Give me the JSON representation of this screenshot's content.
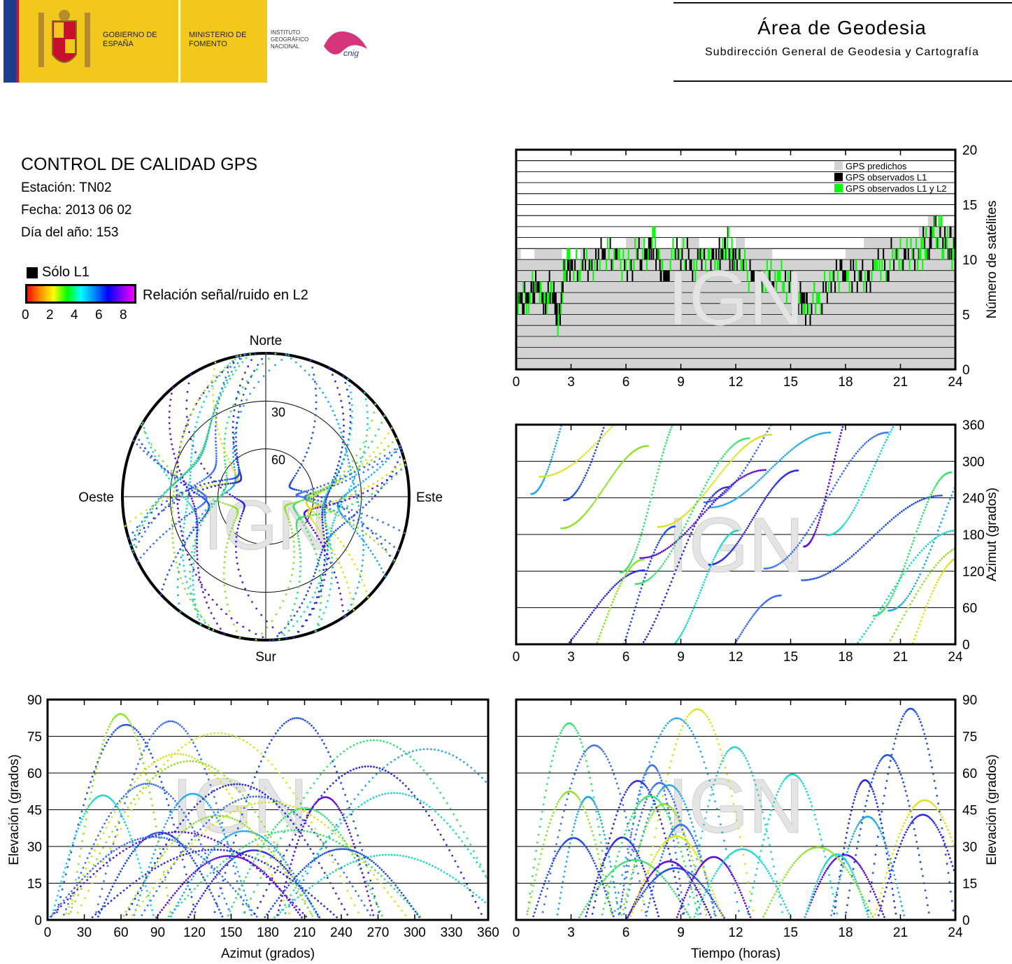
{
  "header": {
    "gobierno": "GOBIERNO DE ESPAÑA",
    "ministerio": "MINISTERIO DE FOMENTO",
    "instituto": "INSTITUTO GEOGRÁFICO NACIONAL",
    "cnig": "cnig",
    "area_title": "Área de Geodesia",
    "area_subtitle": "Subdirección General de Geodesia y Cartografía"
  },
  "info": {
    "title": "CONTROL DE CALIDAD GPS",
    "station": "Estación: TN02",
    "date": "Fecha: 2013 06 02",
    "doy": "Día del año: 153"
  },
  "legend": {
    "only_l1": "Sólo L1",
    "snr_label": "Relación señal/ruido en L2",
    "snr_ticks": [
      "0",
      "2",
      "4",
      "6",
      "8"
    ],
    "snr_colors": [
      "#ff0000",
      "#ff8800",
      "#ffff00",
      "#00ff00",
      "#00ffff",
      "#0088ff",
      "#0000ff",
      "#8800ff",
      "#ff00ff"
    ]
  },
  "watermark": "IGN",
  "chart_data": [
    {
      "id": "satellites",
      "type": "area",
      "xlabel": "",
      "ylabel": "Número de satélites",
      "xlim": [
        0,
        24
      ],
      "ylim": [
        0,
        20
      ],
      "xticks": [
        "0",
        "3",
        "6",
        "9",
        "12",
        "15",
        "18",
        "21",
        "24"
      ],
      "yticks": [
        "0",
        "5",
        "10",
        "15",
        "20"
      ],
      "legend": [
        "GPS predichos",
        "GPS observados L1",
        "GPS observados L1 y L2"
      ],
      "legend_position": "top-right",
      "colors": {
        "predicted": "#d3d3d3",
        "l1": "#000000",
        "l1l2": "#00ff00"
      },
      "series": [
        {
          "name": "GPS predichos",
          "x": [
            0,
            0.25,
            1,
            2,
            2.5,
            3.5,
            4,
            5,
            6,
            7,
            8,
            9,
            10,
            11,
            12,
            12.5,
            13,
            14,
            15,
            16,
            17,
            18,
            19,
            20,
            21,
            22,
            22.5,
            23,
            24
          ],
          "y": [
            11,
            10,
            11,
            11,
            10,
            11,
            11,
            11,
            12,
            11,
            11,
            12,
            11,
            11,
            12,
            11,
            11,
            10,
            10,
            10,
            10,
            11,
            12,
            12,
            12,
            13,
            14,
            13,
            13
          ]
        },
        {
          "name": "GPS observados L1 y L2",
          "x": [
            0,
            0.5,
            1,
            1.5,
            2,
            2.3,
            2.6,
            3,
            4,
            5,
            6,
            7,
            7.5,
            8,
            9,
            10,
            11,
            11.5,
            12,
            13,
            14,
            15,
            15.5,
            16,
            17,
            18,
            19,
            20,
            21,
            22,
            22.5,
            23,
            23.5,
            24
          ],
          "y": [
            6,
            6,
            7,
            6,
            7,
            4,
            8,
            9,
            9,
            10,
            9,
            10,
            11,
            9,
            10,
            9,
            10,
            11,
            9,
            8,
            8,
            7,
            6,
            5,
            7,
            8,
            8,
            9,
            10,
            10,
            11,
            12,
            11,
            10
          ]
        }
      ]
    },
    {
      "id": "skyplot",
      "type": "scatter",
      "title": "",
      "directions": {
        "north": "Norte",
        "east": "Este",
        "south": "Sur",
        "west": "Oeste"
      },
      "ring_labels": [
        "30",
        "60"
      ],
      "rings_elevation_deg": [
        0,
        30,
        60
      ],
      "max_elevation_deg": 90,
      "note": ""
    },
    {
      "id": "azimuth_time",
      "type": "scatter",
      "xlabel": "",
      "ylabel": "Azimut (grados)",
      "xlim": [
        0,
        24
      ],
      "ylim": [
        0,
        360
      ],
      "xticks": [
        "0",
        "3",
        "6",
        "9",
        "12",
        "15",
        "18",
        "21",
        "24"
      ],
      "yticks": [
        "0",
        "60",
        "120",
        "180",
        "240",
        "300",
        "360"
      ]
    },
    {
      "id": "elevation_azimuth",
      "type": "scatter",
      "xlabel": "Azimut (grados)",
      "ylabel": "Elevación (grados)",
      "xlim": [
        0,
        360
      ],
      "ylim": [
        0,
        90
      ],
      "xticks": [
        "0",
        "30",
        "60",
        "90",
        "120",
        "150",
        "180",
        "210",
        "240",
        "270",
        "300",
        "330",
        "360"
      ],
      "yticks": [
        "0",
        "15",
        "30",
        "45",
        "60",
        "75",
        "90"
      ]
    },
    {
      "id": "elevation_time",
      "type": "scatter",
      "xlabel": "Tiempo (horas)",
      "ylabel": "Elevación (grados)",
      "xlim": [
        0,
        24
      ],
      "ylim": [
        0,
        90
      ],
      "xticks": [
        "0",
        "3",
        "6",
        "9",
        "12",
        "15",
        "18",
        "21",
        "24"
      ],
      "yticks": [
        "0",
        "15",
        "30",
        "45",
        "60",
        "75",
        "90"
      ]
    }
  ]
}
